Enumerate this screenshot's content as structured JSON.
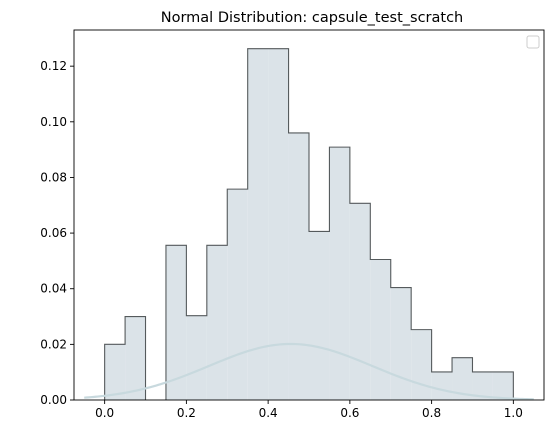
{
  "chart_data": {
    "type": "histogram",
    "title": "Normal Distribution: capsule_test_scratch",
    "xlabel": "",
    "ylabel": "",
    "xlim": [
      -0.075,
      1.075
    ],
    "ylim": [
      0,
      0.133
    ],
    "x_ticks": [
      0.0,
      0.2,
      0.4,
      0.6,
      0.8,
      1.0
    ],
    "x_tick_labels": [
      "0.0",
      "0.2",
      "0.4",
      "0.6",
      "0.8",
      "1.0"
    ],
    "y_ticks": [
      0.0,
      0.02,
      0.04,
      0.06,
      0.08,
      0.1,
      0.12
    ],
    "y_tick_labels": [
      "0.00",
      "0.02",
      "0.04",
      "0.06",
      "0.08",
      "0.10",
      "0.12"
    ],
    "bin_edges": [
      0.0,
      0.05,
      0.1,
      0.15,
      0.2,
      0.25,
      0.3,
      0.35,
      0.4,
      0.45,
      0.5,
      0.55,
      0.6,
      0.65,
      0.7,
      0.75,
      0.8,
      0.85,
      0.9,
      0.95,
      1.0
    ],
    "bin_heights": [
      0.02,
      0.03,
      0.0,
      0.0556,
      0.0303,
      0.0556,
      0.0758,
      0.1263,
      0.1263,
      0.096,
      0.0606,
      0.0909,
      0.0707,
      0.0505,
      0.0404,
      0.0253,
      0.0101,
      0.0152,
      0.0101,
      0.0101
    ],
    "normal_curve": {
      "mean": 0.455,
      "std": 0.2,
      "scale": 0.0101,
      "x_range": [
        -0.05,
        1.05
      ]
    },
    "grid": false,
    "legend": {
      "placement": "top-right",
      "entries": []
    },
    "colors": {
      "hist_fill": "#dbe3e8",
      "hist_edge": "#555a5c",
      "curve": "#c8d9de",
      "axis": "#000000"
    }
  }
}
